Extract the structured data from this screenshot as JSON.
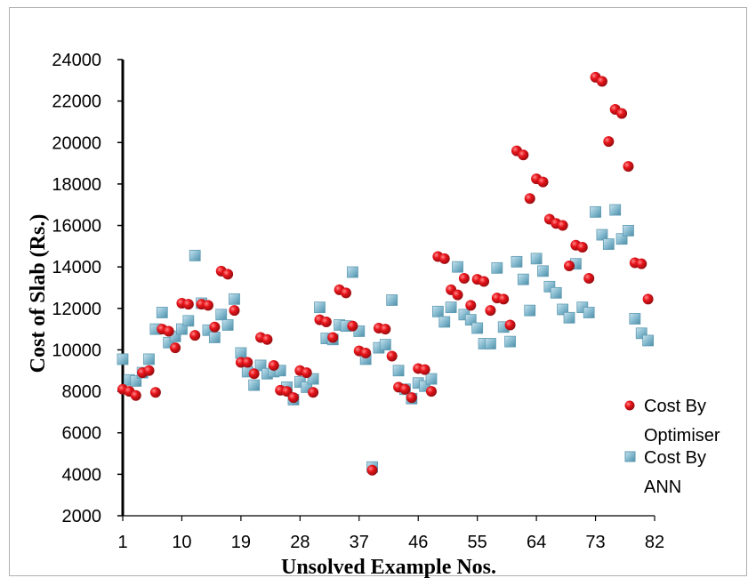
{
  "chart_data": {
    "type": "scatter",
    "xlabel": "Unsolved Example Nos.",
    "ylabel": "Cost of Slab (Rs.)",
    "xlim": [
      1,
      82
    ],
    "ylim": [
      2000,
      24000
    ],
    "x_ticks": [
      1,
      10,
      19,
      28,
      37,
      46,
      55,
      64,
      73,
      82
    ],
    "y_ticks": [
      2000,
      4000,
      6000,
      8000,
      10000,
      12000,
      14000,
      16000,
      18000,
      20000,
      22000,
      24000
    ],
    "grid": false,
    "legend_position": "bottom-right",
    "colors": {
      "optimiser": "#e8141b",
      "ann": "#7fb6cc"
    },
    "series": [
      {
        "name": "Cost By Optimiser",
        "marker": "circle",
        "points": [
          [
            1,
            8100
          ],
          [
            2,
            8000
          ],
          [
            3,
            7800
          ],
          [
            4,
            8900
          ],
          [
            5,
            9000
          ],
          [
            6,
            7950
          ],
          [
            7,
            11000
          ],
          [
            8,
            10900
          ],
          [
            9,
            10100
          ],
          [
            10,
            12250
          ],
          [
            11,
            12200
          ],
          [
            12,
            10700
          ],
          [
            13,
            12200
          ],
          [
            14,
            12150
          ],
          [
            15,
            11100
          ],
          [
            16,
            13800
          ],
          [
            17,
            13650
          ],
          [
            18,
            11900
          ],
          [
            19,
            9400
          ],
          [
            20,
            9400
          ],
          [
            21,
            8850
          ],
          [
            22,
            10600
          ],
          [
            23,
            10500
          ],
          [
            24,
            9250
          ],
          [
            25,
            8050
          ],
          [
            26,
            8000
          ],
          [
            27,
            7700
          ],
          [
            28,
            9000
          ],
          [
            29,
            8900
          ],
          [
            30,
            7950
          ],
          [
            31,
            11450
          ],
          [
            32,
            11350
          ],
          [
            33,
            10600
          ],
          [
            34,
            12900
          ],
          [
            35,
            12750
          ],
          [
            36,
            11150
          ],
          [
            37,
            9950
          ],
          [
            38,
            9850
          ],
          [
            39,
            4200
          ],
          [
            40,
            11050
          ],
          [
            41,
            11000
          ],
          [
            42,
            9700
          ],
          [
            43,
            8200
          ],
          [
            44,
            8100
          ],
          [
            45,
            7700
          ],
          [
            46,
            9100
          ],
          [
            47,
            9050
          ],
          [
            48,
            8000
          ],
          [
            49,
            14500
          ],
          [
            50,
            14400
          ],
          [
            51,
            12900
          ],
          [
            52,
            12650
          ],
          [
            53,
            13450
          ],
          [
            54,
            12150
          ],
          [
            55,
            13400
          ],
          [
            56,
            13300
          ],
          [
            57,
            11900
          ],
          [
            58,
            12500
          ],
          [
            59,
            12450
          ],
          [
            60,
            11200
          ],
          [
            61,
            19600
          ],
          [
            62,
            19400
          ],
          [
            63,
            17300
          ],
          [
            64,
            18250
          ],
          [
            65,
            18100
          ],
          [
            66,
            16300
          ],
          [
            67,
            16100
          ],
          [
            68,
            16000
          ],
          [
            69,
            14050
          ],
          [
            70,
            15050
          ],
          [
            71,
            14950
          ],
          [
            72,
            13450
          ],
          [
            73,
            23150
          ],
          [
            74,
            22950
          ],
          [
            75,
            20050
          ],
          [
            76,
            21600
          ],
          [
            77,
            21400
          ],
          [
            78,
            18850
          ],
          [
            79,
            14200
          ],
          [
            80,
            14150
          ],
          [
            81,
            12450
          ]
        ]
      },
      {
        "name": "Cost By ANN",
        "marker": "square",
        "points": [
          [
            1,
            9550
          ],
          [
            2,
            8550
          ],
          [
            3,
            8500
          ],
          [
            4,
            8900
          ],
          [
            5,
            9550
          ],
          [
            6,
            11000
          ],
          [
            7,
            11800
          ],
          [
            8,
            10350
          ],
          [
            9,
            10650
          ],
          [
            10,
            11000
          ],
          [
            11,
            11400
          ],
          [
            12,
            14550
          ],
          [
            13,
            12250
          ],
          [
            14,
            10950
          ],
          [
            15,
            10600
          ],
          [
            16,
            11700
          ],
          [
            17,
            11200
          ],
          [
            18,
            12450
          ],
          [
            19,
            9850
          ],
          [
            20,
            8950
          ],
          [
            21,
            8300
          ],
          [
            22,
            9250
          ],
          [
            23,
            8850
          ],
          [
            24,
            8950
          ],
          [
            25,
            9000
          ],
          [
            26,
            8200
          ],
          [
            27,
            7600
          ],
          [
            28,
            8450
          ],
          [
            29,
            8200
          ],
          [
            30,
            8600
          ],
          [
            31,
            12050
          ],
          [
            32,
            10550
          ],
          [
            33,
            10500
          ],
          [
            34,
            11200
          ],
          [
            35,
            11150
          ],
          [
            36,
            13750
          ],
          [
            37,
            10900
          ],
          [
            38,
            9550
          ],
          [
            39,
            4350
          ],
          [
            40,
            10100
          ],
          [
            41,
            10250
          ],
          [
            42,
            12400
          ],
          [
            43,
            9000
          ],
          [
            44,
            8100
          ],
          [
            45,
            7650
          ],
          [
            46,
            8400
          ],
          [
            47,
            8250
          ],
          [
            48,
            8600
          ],
          [
            49,
            11850
          ],
          [
            50,
            11350
          ],
          [
            51,
            12050
          ],
          [
            52,
            14000
          ],
          [
            53,
            11700
          ],
          [
            54,
            11450
          ],
          [
            55,
            11050
          ],
          [
            56,
            10300
          ],
          [
            57,
            10300
          ],
          [
            58,
            13950
          ],
          [
            59,
            11100
          ],
          [
            60,
            10400
          ],
          [
            61,
            14250
          ],
          [
            62,
            13400
          ],
          [
            63,
            11900
          ],
          [
            64,
            14400
          ],
          [
            65,
            13800
          ],
          [
            66,
            13050
          ],
          [
            67,
            12750
          ],
          [
            68,
            11950
          ],
          [
            69,
            11550
          ],
          [
            70,
            14150
          ],
          [
            71,
            12050
          ],
          [
            72,
            11800
          ],
          [
            73,
            16650
          ],
          [
            74,
            15550
          ],
          [
            75,
            15100
          ],
          [
            76,
            16750
          ],
          [
            77,
            15350
          ],
          [
            78,
            15750
          ],
          [
            79,
            11500
          ],
          [
            80,
            10800
          ],
          [
            81,
            10450
          ]
        ]
      }
    ]
  }
}
